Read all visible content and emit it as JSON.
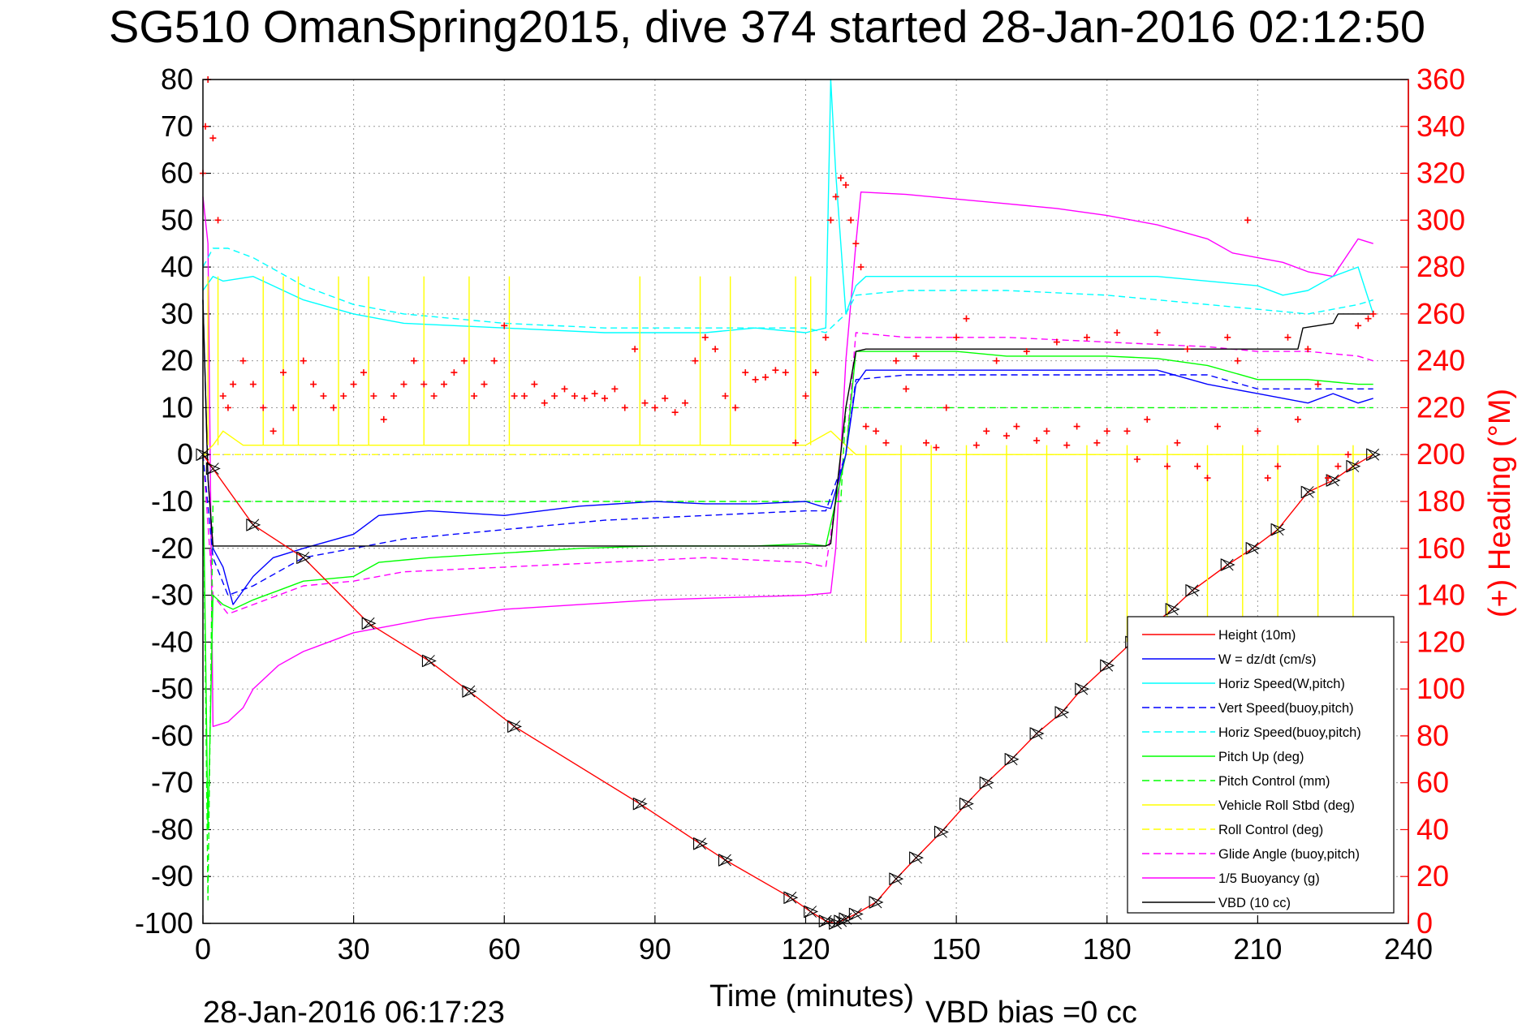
{
  "title": "SG510 OmanSpring2015, dive 374 started 28-Jan-2016 02:12:50",
  "xlabel": "Time (minutes)",
  "ylabel_right": "(+) Heading (°M)",
  "footer_date": "28-Jan-2016 06:17:23",
  "footer_bias": "VBD bias =0 cc",
  "colors": {
    "height": "#ff0000",
    "w": "#0000ff",
    "horiz": "#00ffff",
    "vert_buoy": "#0000ff",
    "horiz_buoy": "#00ffff",
    "pitch": "#00ff00",
    "pitch_ctrl": "#00ff00",
    "roll": "#ffff00",
    "roll_ctrl": "#ffff00",
    "glide": "#ff00ff",
    "buoyancy": "#ff00ff",
    "vbd": "#000000",
    "heading": "#ff0000"
  },
  "chart_data": {
    "type": "line",
    "xlim": [
      0,
      240
    ],
    "ylim": [
      -100,
      80
    ],
    "ylim_right": [
      0,
      360
    ],
    "x_ticks": [
      "0",
      "30",
      "60",
      "90",
      "120",
      "150",
      "180",
      "210",
      "240"
    ],
    "y_ticks": [
      "80",
      "70",
      "60",
      "50",
      "40",
      "30",
      "20",
      "10",
      "0",
      "-10",
      "-20",
      "-30",
      "-40",
      "-50",
      "-60",
      "-70",
      "-80",
      "-90",
      "-100"
    ],
    "y_ticks_right": [
      "360",
      "340",
      "320",
      "300",
      "280",
      "260",
      "240",
      "220",
      "200",
      "180",
      "160",
      "140",
      "120",
      "100",
      "80",
      "60",
      "40",
      "20",
      "0"
    ],
    "grid": true,
    "legend_position": "bottom-right",
    "legend": [
      {
        "label": "Height (10m)",
        "color": "#ff0000",
        "dash": "solid"
      },
      {
        "label": "W = dz/dt (cm/s)",
        "color": "#0000ff",
        "dash": "solid"
      },
      {
        "label": "Horiz Speed(W,pitch)",
        "color": "#00ffff",
        "dash": "solid"
      },
      {
        "label": "Vert Speed(buoy,pitch)",
        "color": "#0000ff",
        "dash": "dashed"
      },
      {
        "label": "Horiz Speed(buoy,pitch)",
        "color": "#00ffff",
        "dash": "dashed"
      },
      {
        "label": "Pitch Up (deg)",
        "color": "#00ff00",
        "dash": "solid"
      },
      {
        "label": "Pitch Control (mm)",
        "color": "#00ff00",
        "dash": "dashed"
      },
      {
        "label": "Vehicle Roll Stbd (deg)",
        "color": "#ffff00",
        "dash": "solid"
      },
      {
        "label": "Roll Control (deg)",
        "color": "#ffff00",
        "dash": "dashed"
      },
      {
        "label": "Glide Angle (buoy,pitch)",
        "color": "#ff00ff",
        "dash": "dashed"
      },
      {
        "label": "1/5 Buoyancy (g)",
        "color": "#ff00ff",
        "dash": "solid"
      },
      {
        "label": "VBD (10 cc)",
        "color": "#000000",
        "dash": "solid"
      }
    ],
    "series": [
      {
        "key": "height",
        "name": "Height (10m)",
        "x": [
          0,
          2,
          10,
          20,
          33,
          45,
          53,
          62,
          87,
          99,
          104,
          117,
          121,
          124,
          126,
          127,
          128,
          130,
          134,
          138,
          142,
          147,
          152,
          156,
          161,
          166,
          171,
          175,
          180,
          185,
          193,
          197,
          204,
          209,
          214,
          220,
          225,
          229,
          233
        ],
        "y": [
          0,
          -3,
          -15,
          -22,
          -36,
          -44,
          -50.5,
          -58,
          -74.5,
          -83,
          -86.5,
          -94.5,
          -97.5,
          -99.5,
          -100,
          -99.5,
          -99,
          -98,
          -95.5,
          -90.5,
          -86,
          -80.5,
          -74.5,
          -70,
          -65,
          -59.5,
          -55,
          -50,
          -45,
          -40,
          -33,
          -29,
          -23.5,
          -20,
          -16,
          -8,
          -5.5,
          -2.5,
          0
        ]
      },
      {
        "key": "w",
        "name": "W = dz/dt (cm/s)",
        "x": [
          0,
          1,
          2,
          4,
          6,
          10,
          14,
          20,
          30,
          35,
          45,
          60,
          75,
          90,
          100,
          110,
          120,
          123,
          125,
          128,
          130,
          132,
          140,
          150,
          160,
          170,
          180,
          190,
          200,
          210,
          220,
          225,
          230,
          233
        ],
        "y": [
          33,
          -5,
          -20,
          -24,
          -32,
          -26,
          -22,
          -20,
          -17,
          -13,
          -12,
          -13,
          -11,
          -10,
          -10.5,
          -10.5,
          -10,
          -11,
          -11.5,
          0,
          15,
          18,
          18,
          18,
          18,
          18,
          18,
          18,
          15,
          13,
          11,
          13,
          11,
          12
        ]
      },
      {
        "key": "horiz",
        "name": "Horiz Speed(W,pitch)",
        "x": [
          0,
          2,
          4,
          10,
          20,
          30,
          40,
          60,
          80,
          100,
          110,
          120,
          124,
          125,
          126,
          128,
          130,
          132,
          140,
          150,
          160,
          170,
          180,
          190,
          200,
          210,
          215,
          220,
          225,
          230,
          233
        ],
        "y": [
          35,
          38,
          37,
          38,
          33,
          30,
          28,
          27,
          26,
          26,
          27,
          26,
          27,
          80,
          60,
          30,
          36,
          38,
          38,
          38,
          38,
          38,
          38,
          38,
          37,
          36,
          34,
          35,
          38,
          40,
          30
        ]
      },
      {
        "key": "vert_buoy",
        "name": "Vert Speed(buoy,pitch)",
        "x": [
          0,
          2,
          5,
          10,
          20,
          30,
          40,
          60,
          80,
          100,
          120,
          124,
          128,
          130,
          140,
          160,
          180,
          200,
          210,
          220,
          230,
          233
        ],
        "y": [
          0,
          -22,
          -30,
          -28,
          -22,
          -20,
          -18,
          -16,
          -14,
          -13,
          -12,
          -12,
          0,
          16,
          17,
          17,
          17,
          17,
          14,
          14,
          14,
          14
        ]
      },
      {
        "key": "horiz_buoy",
        "name": "Horiz Speed(buoy,pitch)",
        "x": [
          0,
          2,
          5,
          10,
          20,
          30,
          40,
          60,
          80,
          100,
          120,
          124,
          126,
          128,
          130,
          140,
          160,
          180,
          200,
          210,
          220,
          230,
          233
        ],
        "y": [
          40,
          44,
          44,
          42,
          36,
          32,
          30,
          28,
          27,
          27,
          27,
          26,
          28,
          30,
          34,
          35,
          35,
          34,
          32,
          31,
          30,
          32,
          33
        ]
      },
      {
        "key": "pitch",
        "name": "Pitch Up (deg)",
        "x": [
          0,
          1,
          2,
          4,
          6,
          10,
          15,
          20,
          30,
          35,
          45,
          60,
          75,
          90,
          100,
          110,
          120,
          124,
          126,
          128,
          130,
          140,
          150,
          160,
          170,
          180,
          190,
          200,
          210,
          220,
          230,
          233
        ],
        "y": [
          0,
          -80,
          -30,
          -32,
          -33,
          -31,
          -29,
          -27,
          -26,
          -23,
          -22,
          -21,
          -20,
          -19.5,
          -19.5,
          -19.5,
          -19,
          -19.5,
          -10,
          0,
          22,
          22,
          22,
          21,
          21,
          21,
          20.5,
          19,
          16,
          16,
          15,
          15
        ]
      },
      {
        "key": "pitch_ctrl",
        "name": "Pitch Control (mm)",
        "x": [
          0,
          1,
          2,
          126,
          127,
          128,
          130,
          233
        ],
        "y": [
          0,
          -95,
          -10,
          -10,
          -10,
          10,
          10,
          10
        ]
      },
      {
        "key": "roll",
        "name": "Vehicle Roll Stbd (deg)",
        "x": [
          0,
          2,
          4,
          8,
          20,
          40,
          60,
          80,
          100,
          120,
          125,
          128,
          130,
          140,
          160,
          180,
          200,
          220,
          230,
          233
        ],
        "y": [
          0,
          2,
          5,
          2,
          2,
          2,
          2,
          2,
          2,
          2,
          5,
          2,
          0,
          0,
          0,
          0,
          0,
          0,
          0,
          0
        ]
      },
      {
        "key": "roll_ctrl",
        "name": "Roll Control (deg)",
        "x": [
          0,
          233
        ],
        "y": [
          0,
          0
        ]
      },
      {
        "key": "glide",
        "name": "Glide Angle (buoy,pitch)",
        "x": [
          0,
          2,
          5,
          10,
          20,
          30,
          40,
          60,
          80,
          100,
          120,
          124,
          126,
          128,
          130,
          140,
          160,
          180,
          200,
          210,
          220,
          230,
          233
        ],
        "y": [
          0,
          -30,
          -34,
          -32,
          -28,
          -27,
          -25,
          -24,
          -23,
          -22,
          -23,
          -24,
          -10,
          0,
          26,
          25,
          25,
          24,
          23,
          22,
          22,
          21,
          20
        ]
      },
      {
        "key": "buoyancy",
        "name": "1/5 Buoyancy (g)",
        "x": [
          0,
          1,
          2,
          5,
          8,
          10,
          15,
          20,
          30,
          45,
          60,
          75,
          90,
          105,
          120,
          125,
          126,
          128,
          130,
          131,
          140,
          150,
          160,
          170,
          180,
          190,
          200,
          205,
          210,
          215,
          220,
          225,
          230,
          233
        ],
        "y": [
          55,
          45,
          -58,
          -57,
          -54,
          -50,
          -45,
          -42,
          -38,
          -35,
          -33,
          -32,
          -31,
          -30.5,
          -30,
          -29.5,
          -20,
          20,
          45,
          56,
          55.5,
          54.5,
          53.5,
          52.5,
          51,
          49,
          46,
          43,
          42,
          41,
          39,
          38,
          46,
          45
        ]
      },
      {
        "key": "vbd",
        "name": "VBD (10 cc)",
        "x": [
          0,
          1,
          2,
          124,
          125,
          128,
          130,
          132,
          150,
          160,
          180,
          200,
          210,
          215,
          218,
          219,
          225,
          226,
          233
        ],
        "y": [
          33,
          -5,
          -19.5,
          -19.5,
          -19,
          10,
          22,
          22.5,
          22.5,
          22.5,
          22.5,
          22.5,
          22.5,
          22.5,
          22.5,
          27,
          28,
          30,
          30
        ]
      },
      {
        "key": "heading",
        "name": "(+) Heading (°M)",
        "axis": "right",
        "marker": "+",
        "x": [
          0,
          0.5,
          1,
          2,
          3,
          4,
          5,
          6,
          8,
          10,
          12,
          14,
          16,
          18,
          20,
          22,
          24,
          26,
          28,
          30,
          32,
          34,
          36,
          38,
          40,
          42,
          44,
          46,
          48,
          50,
          52,
          54,
          56,
          58,
          60,
          62,
          64,
          66,
          68,
          70,
          72,
          74,
          76,
          78,
          80,
          82,
          84,
          86,
          88,
          90,
          92,
          94,
          96,
          98,
          100,
          102,
          104,
          106,
          108,
          110,
          112,
          114,
          116,
          118,
          120,
          122,
          124,
          125,
          126,
          127,
          128,
          129,
          130,
          131,
          132,
          134,
          136,
          138,
          140,
          142,
          144,
          146,
          148,
          150,
          152,
          154,
          156,
          158,
          160,
          162,
          164,
          166,
          168,
          170,
          172,
          174,
          176,
          178,
          180,
          182,
          184,
          186,
          188,
          190,
          192,
          194,
          196,
          198,
          200,
          202,
          204,
          206,
          208,
          210,
          212,
          214,
          216,
          218,
          220,
          222,
          224,
          226,
          228,
          230,
          232,
          233
        ],
        "y": [
          320,
          340,
          360,
          335,
          300,
          225,
          220,
          230,
          240,
          230,
          220,
          210,
          235,
          220,
          240,
          230,
          225,
          220,
          225,
          230,
          235,
          225,
          215,
          225,
          230,
          240,
          230,
          225,
          230,
          235,
          240,
          225,
          230,
          240,
          255,
          225,
          225,
          230,
          222,
          225,
          228,
          225,
          224,
          226,
          224,
          228,
          220,
          245,
          222,
          220,
          224,
          218,
          222,
          240,
          250,
          245,
          225,
          220,
          235,
          232,
          233,
          236,
          235,
          205,
          225,
          235,
          250,
          300,
          310,
          318,
          315,
          300,
          290,
          280,
          212,
          210,
          205,
          240,
          228,
          242,
          205,
          203,
          220,
          250,
          258,
          204,
          210,
          240,
          208,
          212,
          244,
          206,
          210,
          248,
          204,
          212,
          250,
          205,
          210,
          252,
          210,
          198,
          215,
          252,
          195,
          205,
          245,
          195,
          190,
          212,
          250,
          240,
          300,
          210,
          190,
          195,
          250,
          215,
          245,
          230,
          190,
          195,
          200,
          255,
          258,
          260
        ]
      }
    ]
  }
}
